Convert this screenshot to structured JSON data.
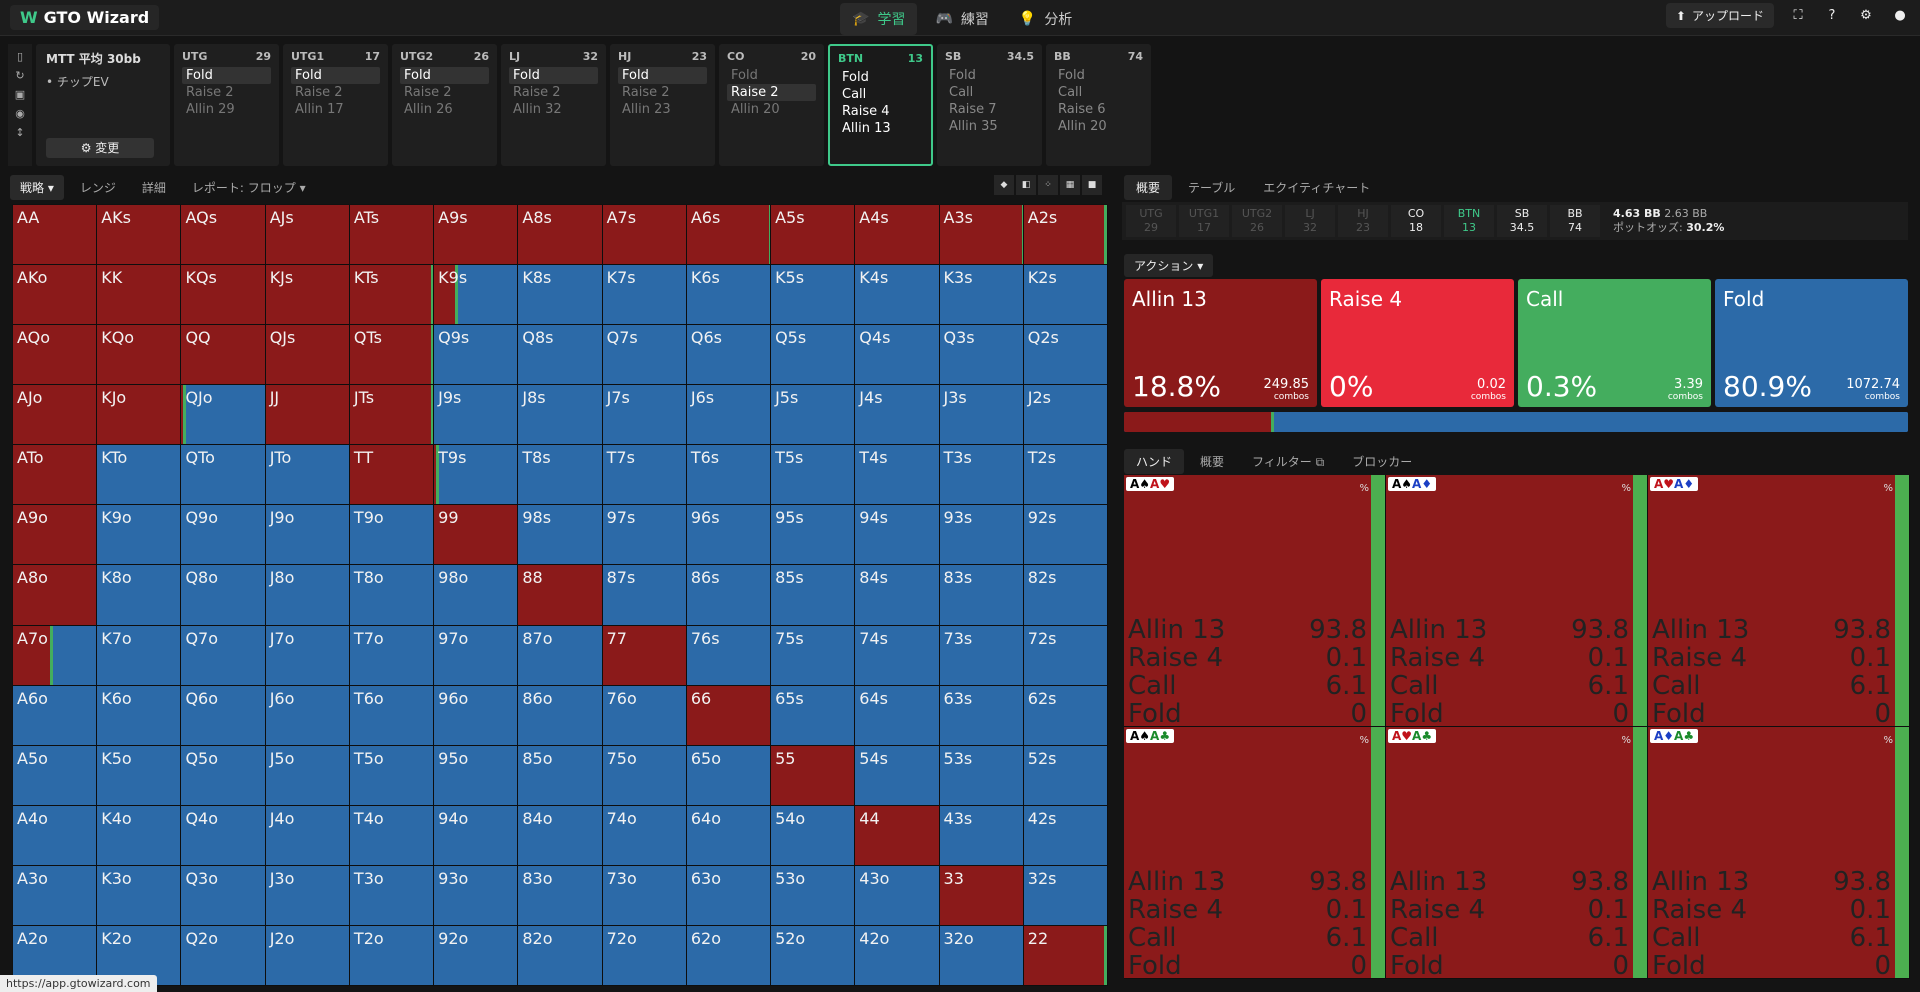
{
  "app": {
    "name": "GTO Wizard"
  },
  "nav": [
    {
      "label": "学習",
      "icon": "graduation-icon",
      "active": true
    },
    {
      "label": "練習",
      "icon": "gamepad-icon",
      "active": false
    },
    {
      "label": "分析",
      "icon": "bulb-icon",
      "active": false
    }
  ],
  "topright": {
    "upload": "アップロード"
  },
  "mtt": {
    "title": "MTT 平均 30bb",
    "sub": "チップEV",
    "change": "変更"
  },
  "positions": [
    {
      "name": "UTG",
      "stack": "29",
      "actions": [
        "Fold",
        "Raise 2",
        "Allin 29"
      ],
      "sel": 0
    },
    {
      "name": "UTG1",
      "stack": "17",
      "actions": [
        "Fold",
        "Raise 2",
        "Allin 17"
      ],
      "sel": 0
    },
    {
      "name": "UTG2",
      "stack": "26",
      "actions": [
        "Fold",
        "Raise 2",
        "Allin 26"
      ],
      "sel": 0
    },
    {
      "name": "LJ",
      "stack": "32",
      "actions": [
        "Fold",
        "Raise 2",
        "Allin 32"
      ],
      "sel": 0
    },
    {
      "name": "HJ",
      "stack": "23",
      "actions": [
        "Fold",
        "Raise 2",
        "Allin 23"
      ],
      "sel": 0
    },
    {
      "name": "CO",
      "stack": "20",
      "actions": [
        "Fold",
        "Raise 2",
        "Allin 20"
      ],
      "sel": 1
    },
    {
      "name": "BTN",
      "stack": "13",
      "actions": [
        "Fold",
        "Call",
        "Raise 4",
        "Allin 13"
      ],
      "sel": -1,
      "current": true
    },
    {
      "name": "SB",
      "stack": "34.5",
      "actions": [
        "Fold",
        "Call",
        "Raise 7",
        "Allin 35"
      ],
      "sel": -1
    },
    {
      "name": "BB",
      "stack": "74",
      "actions": [
        "Fold",
        "Call",
        "Raise 6",
        "Allin 20"
      ],
      "sel": -1
    }
  ],
  "lefttabs": [
    "戦略",
    "レンジ",
    "詳細",
    "レポート: フロップ"
  ],
  "ranks": [
    "A",
    "K",
    "Q",
    "J",
    "T",
    "9",
    "8",
    "7",
    "6",
    "5",
    "4",
    "3",
    "2"
  ],
  "matrix_red_fraction": [
    [
      1,
      1,
      1,
      1,
      1,
      1,
      1,
      1,
      0.99,
      1,
      1,
      0.99,
      0.97
    ],
    [
      1,
      1,
      1,
      1,
      0.98,
      0.25,
      0,
      0,
      0,
      0,
      0,
      0,
      0
    ],
    [
      1,
      1,
      1,
      1,
      0.97,
      0,
      0,
      0,
      0,
      0,
      0,
      0,
      0
    ],
    [
      1,
      1,
      0.02,
      1,
      0.97,
      0,
      0,
      0,
      0,
      0,
      0,
      0,
      0
    ],
    [
      1,
      0,
      0,
      0,
      1,
      0.02,
      0,
      0,
      0,
      0,
      0,
      0,
      0
    ],
    [
      1,
      0,
      0,
      0,
      0,
      1,
      0,
      0,
      0,
      0,
      0,
      0,
      0
    ],
    [
      1,
      0,
      0,
      0,
      0,
      0,
      1,
      0,
      0,
      0,
      0,
      0,
      0
    ],
    [
      0.45,
      0,
      0,
      0,
      0,
      0,
      0,
      1,
      0,
      0,
      0,
      0,
      0
    ],
    [
      0,
      0,
      0,
      0,
      0,
      0,
      0,
      0,
      1,
      0,
      0,
      0,
      0
    ],
    [
      0,
      0,
      0,
      0,
      0,
      0,
      0,
      0,
      0,
      1,
      0,
      0,
      0
    ],
    [
      0,
      0,
      0,
      0,
      0,
      0,
      0,
      0,
      0,
      0,
      1,
      0,
      0
    ],
    [
      0,
      0,
      0,
      0,
      0,
      0,
      0,
      0,
      0,
      0,
      0,
      1,
      0
    ],
    [
      0,
      0,
      0,
      0,
      0,
      0,
      0,
      0,
      0,
      0,
      0,
      0,
      0.97
    ]
  ],
  "righttabs": [
    "概要",
    "テーブル",
    "エクイティチャート"
  ],
  "strip": [
    {
      "p": "UTG",
      "v": "29",
      "state": "off"
    },
    {
      "p": "UTG1",
      "v": "17",
      "state": "off"
    },
    {
      "p": "UTG2",
      "v": "26",
      "state": "off"
    },
    {
      "p": "LJ",
      "v": "32",
      "state": "off"
    },
    {
      "p": "HJ",
      "v": "23",
      "state": "off"
    },
    {
      "p": "CO",
      "v": "18",
      "state": "on"
    },
    {
      "p": "BTN",
      "v": "13",
      "state": "cur"
    },
    {
      "p": "SB",
      "v": "34.5",
      "state": "on"
    },
    {
      "p": "BB",
      "v": "74",
      "state": "on"
    }
  ],
  "pot": {
    "bb": "4.63 BB",
    "bb2": "2.63 BB",
    "odds_label": "ポットオッズ:",
    "odds": "30.2%"
  },
  "action_btn": "アクション",
  "actions": [
    {
      "name": "Allin 13",
      "pct": "18.8%",
      "combos": "249.85",
      "unit": "combos",
      "color": "#8b1a1a",
      "freq": 18.8
    },
    {
      "name": "Raise 4",
      "pct": "0%",
      "combos": "0.02",
      "unit": "combos",
      "color": "#e8293a",
      "freq": 0
    },
    {
      "name": "Call",
      "pct": "0.3%",
      "combos": "3.39",
      "unit": "combos",
      "color": "#44ad5e",
      "freq": 0.3
    },
    {
      "name": "Fold",
      "pct": "80.9%",
      "combos": "1072.74",
      "unit": "combos",
      "color": "#2c6aa8",
      "freq": 80.9
    }
  ],
  "handtabs": [
    "ハンド",
    "概要",
    "フィルター",
    "ブロッカー"
  ],
  "hands": [
    {
      "cards": [
        [
          "A",
          "♠",
          "k"
        ],
        [
          "A",
          "♥",
          "r"
        ]
      ],
      "rows": [
        [
          "Allin 13",
          "93.8"
        ],
        [
          "Raise 4",
          "0.1"
        ],
        [
          "Call",
          "6.1"
        ],
        [
          "Fold",
          "0"
        ]
      ]
    },
    {
      "cards": [
        [
          "A",
          "♠",
          "k"
        ],
        [
          "A",
          "♦",
          "b"
        ]
      ],
      "rows": [
        [
          "Allin 13",
          "93.8"
        ],
        [
          "Raise 4",
          "0.1"
        ],
        [
          "Call",
          "6.1"
        ],
        [
          "Fold",
          "0"
        ]
      ]
    },
    {
      "cards": [
        [
          "A",
          "♥",
          "r"
        ],
        [
          "A",
          "♦",
          "b"
        ]
      ],
      "rows": [
        [
          "Allin 13",
          "93.8"
        ],
        [
          "Raise 4",
          "0.1"
        ],
        [
          "Call",
          "6.1"
        ],
        [
          "Fold",
          "0"
        ]
      ]
    },
    {
      "cards": [
        [
          "A",
          "♠",
          "k"
        ],
        [
          "A",
          "♣",
          "g"
        ]
      ],
      "rows": [
        [
          "Allin 13",
          "93.8"
        ],
        [
          "Raise 4",
          "0.1"
        ],
        [
          "Call",
          "6.1"
        ],
        [
          "Fold",
          "0"
        ]
      ]
    },
    {
      "cards": [
        [
          "A",
          "♥",
          "r"
        ],
        [
          "A",
          "♣",
          "g"
        ]
      ],
      "rows": [
        [
          "Allin 13",
          "93.8"
        ],
        [
          "Raise 4",
          "0.1"
        ],
        [
          "Call",
          "6.1"
        ],
        [
          "Fold",
          "0"
        ]
      ]
    },
    {
      "cards": [
        [
          "A",
          "♦",
          "b"
        ],
        [
          "A",
          "♣",
          "g"
        ]
      ],
      "rows": [
        [
          "Allin 13",
          "93.8"
        ],
        [
          "Raise 4",
          "0.1"
        ],
        [
          "Call",
          "6.1"
        ],
        [
          "Fold",
          "0"
        ]
      ]
    }
  ],
  "status_url": "https://app.gtowizard.com"
}
